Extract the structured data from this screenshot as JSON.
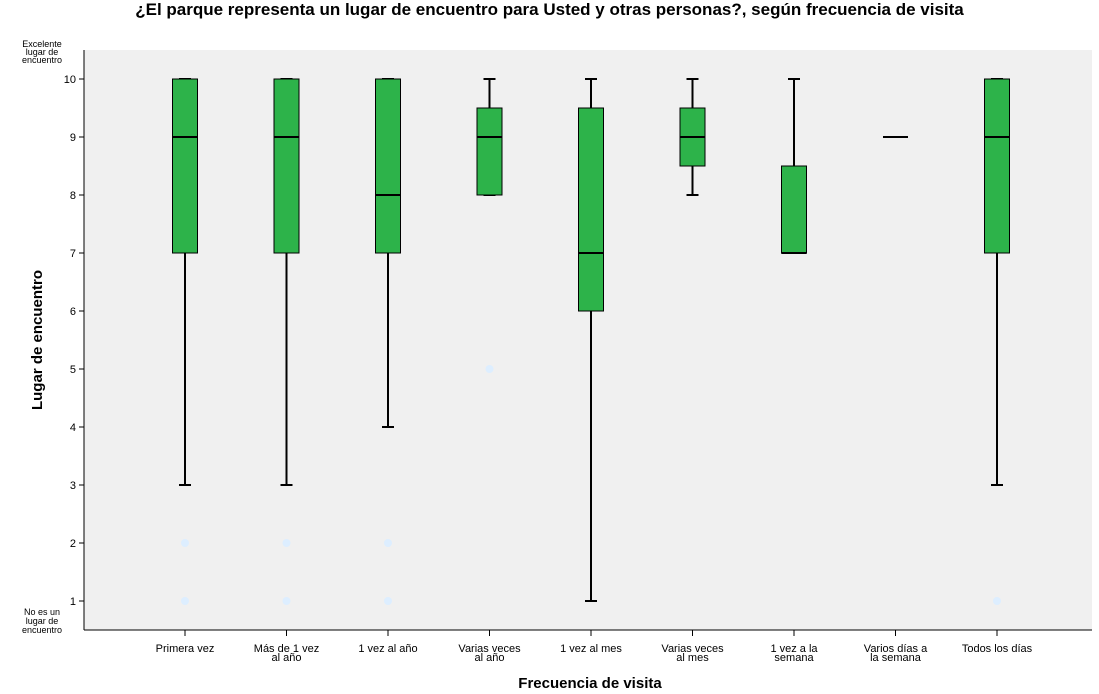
{
  "chart_data": {
    "type": "boxplot",
    "title": "¿El parque representa un lugar de encuentro para Usted y otras personas?, según frecuencia de visita",
    "xlabel": "Frecuencia de visita",
    "ylabel": "Lugar de encuentro",
    "ylim": [
      0.5,
      10.5
    ],
    "yticks": [
      1,
      2,
      3,
      4,
      5,
      6,
      7,
      8,
      9,
      10
    ],
    "y_end_labels": {
      "top": [
        "Excelente",
        "lugar de",
        "encuentro"
      ],
      "bottom": [
        "No es un",
        "lugar de",
        "encuentro"
      ]
    },
    "grid": false,
    "box_color": "#2db34a",
    "plot_background": "#f0f0f0",
    "outlier_color": "#ddeeff",
    "categories": [
      {
        "label": [
          "Primera vez"
        ],
        "whisker_low": 3,
        "q1": 7,
        "median": 9,
        "q3": 10,
        "whisker_high": 10,
        "outliers": [
          2,
          1
        ]
      },
      {
        "label": [
          "Más de 1 vez",
          "al año"
        ],
        "whisker_low": 3,
        "q1": 7,
        "median": 9,
        "q3": 10,
        "whisker_high": 10,
        "outliers": [
          2,
          1
        ]
      },
      {
        "label": [
          "1 vez al año"
        ],
        "whisker_low": 4,
        "q1": 7,
        "median": 8,
        "q3": 10,
        "whisker_high": 10,
        "outliers": [
          2,
          1
        ]
      },
      {
        "label": [
          "Varias veces",
          "al año"
        ],
        "whisker_low": 8,
        "q1": 8,
        "median": 9,
        "q3": 9.5,
        "whisker_high": 10,
        "outliers": [
          5
        ]
      },
      {
        "label": [
          "1 vez al mes"
        ],
        "whisker_low": 1,
        "q1": 6,
        "median": 7,
        "q3": 9.5,
        "whisker_high": 10,
        "outliers": []
      },
      {
        "label": [
          "Varias veces",
          "al mes"
        ],
        "whisker_low": 8,
        "q1": 8.5,
        "median": 9,
        "q3": 9.5,
        "whisker_high": 10,
        "outliers": []
      },
      {
        "label": [
          "1 vez a la",
          "semana"
        ],
        "whisker_low": 7,
        "q1": 7,
        "median": 7,
        "q3": 8.5,
        "whisker_high": 10,
        "outliers": []
      },
      {
        "label": [
          "Varios días a",
          "la semana"
        ],
        "whisker_low": 9,
        "q1": 9,
        "median": 9,
        "q3": 9,
        "whisker_high": 9,
        "outliers": []
      },
      {
        "label": [
          "Todos los días"
        ],
        "whisker_low": 3,
        "q1": 7,
        "median": 9,
        "q3": 10,
        "whisker_high": 10,
        "outliers": [
          1
        ]
      }
    ]
  }
}
